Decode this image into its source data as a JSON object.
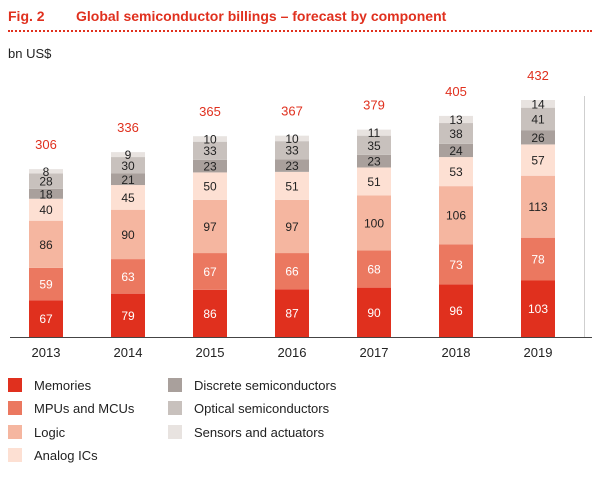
{
  "header": {
    "fig_label": "Fig. 2",
    "title": "Global semiconductor billings – forecast by component"
  },
  "chart_data": {
    "type": "bar",
    "stacked": true,
    "title": "Global semiconductor billings – forecast by component",
    "ylabel": "bn US$",
    "xlabel": "",
    "categories": [
      "2013",
      "2014",
      "2015",
      "2016",
      "2017",
      "2018",
      "2019"
    ],
    "totals": [
      306,
      336,
      365,
      367,
      379,
      405,
      432
    ],
    "series": [
      {
        "name": "Memories",
        "color": "#e0301e",
        "values": [
          67,
          79,
          86,
          87,
          90,
          96,
          103
        ]
      },
      {
        "name": "MPUs and MCUs",
        "color": "#eb7860",
        "values": [
          59,
          63,
          67,
          66,
          68,
          73,
          78
        ]
      },
      {
        "name": "Logic",
        "color": "#f5b6a0",
        "values": [
          86,
          90,
          97,
          97,
          100,
          106,
          113
        ]
      },
      {
        "name": "Analog ICs",
        "color": "#fde0d3",
        "values": [
          40,
          45,
          50,
          51,
          51,
          53,
          57
        ]
      },
      {
        "name": "Discrete semiconductors",
        "color": "#a9a09c",
        "values": [
          18,
          21,
          23,
          23,
          23,
          24,
          26
        ]
      },
      {
        "name": "Optical semiconductors",
        "color": "#c8c1bd",
        "values": [
          28,
          30,
          33,
          33,
          35,
          38,
          41
        ]
      },
      {
        "name": "Sensors and actuators",
        "color": "#e8e3e0",
        "values": [
          8,
          9,
          10,
          10,
          11,
          13,
          14
        ]
      }
    ],
    "ylim": [
      0,
      432
    ],
    "grid": false,
    "legend": "bottom"
  }
}
